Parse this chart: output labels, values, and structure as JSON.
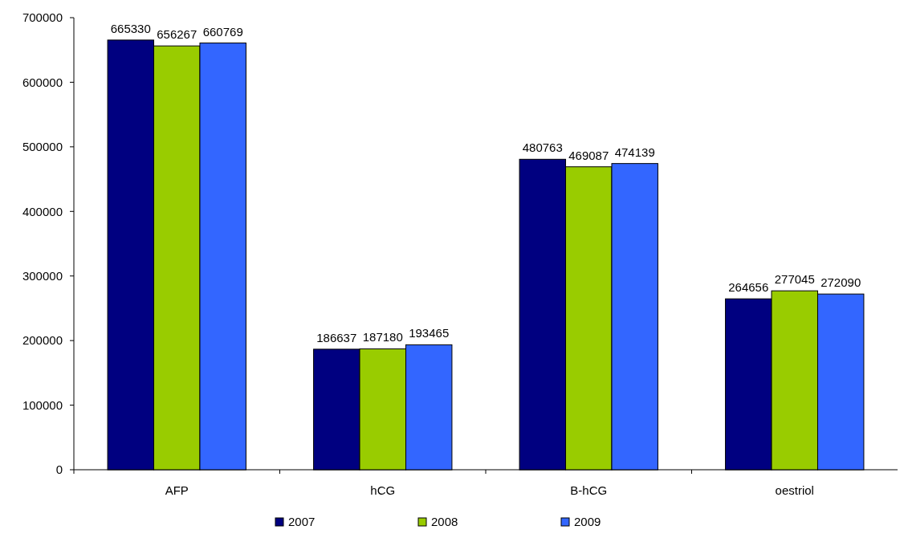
{
  "chart_data": {
    "type": "bar",
    "categories": [
      "AFP",
      "hCG",
      "B-hCG",
      "oestriol"
    ],
    "series": [
      {
        "name": "2007",
        "color": "#000080",
        "values": [
          665330,
          186637,
          480763,
          264656
        ]
      },
      {
        "name": "2008",
        "color": "#99cc00",
        "values": [
          656267,
          187180,
          469087,
          277045
        ]
      },
      {
        "name": "2009",
        "color": "#3366ff",
        "values": [
          660769,
          193465,
          474139,
          272090
        ]
      }
    ],
    "ylim": [
      0,
      700000
    ],
    "yticks": [
      0,
      100000,
      200000,
      300000,
      400000,
      500000,
      600000,
      700000
    ],
    "data_labels": true,
    "legend": "bottom",
    "grid": false
  }
}
